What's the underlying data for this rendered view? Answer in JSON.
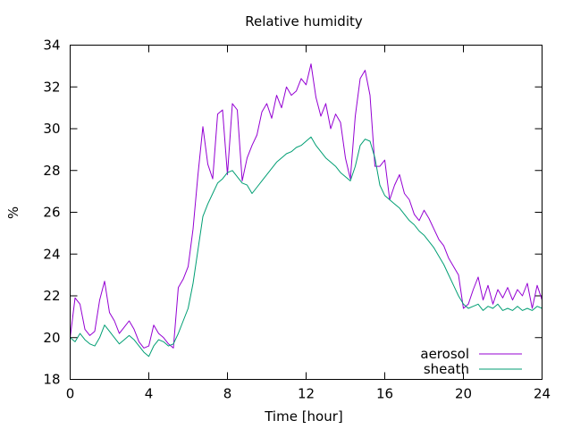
{
  "chart_data": {
    "type": "line",
    "title": "Relative humidity",
    "xlabel": "Time [hour]",
    "ylabel": "%",
    "xlim": [
      0,
      24
    ],
    "ylim": [
      18,
      34
    ],
    "xticks": [
      0,
      4,
      8,
      12,
      16,
      20,
      24
    ],
    "yticks": [
      18,
      20,
      22,
      24,
      26,
      28,
      30,
      32,
      34
    ],
    "grid": false,
    "legend_position": "bottom-right",
    "x": [
      0,
      0.25,
      0.5,
      0.75,
      1,
      1.25,
      1.5,
      1.75,
      2,
      2.25,
      2.5,
      2.75,
      3,
      3.25,
      3.5,
      3.75,
      4,
      4.25,
      4.5,
      4.75,
      5,
      5.25,
      5.5,
      5.75,
      6,
      6.25,
      6.5,
      6.75,
      7,
      7.25,
      7.5,
      7.75,
      8,
      8.25,
      8.5,
      8.75,
      9,
      9.25,
      9.5,
      9.75,
      10,
      10.25,
      10.5,
      10.75,
      11,
      11.25,
      11.5,
      11.75,
      12,
      12.25,
      12.5,
      12.75,
      13,
      13.25,
      13.5,
      13.75,
      14,
      14.25,
      14.5,
      14.75,
      15,
      15.25,
      15.5,
      15.75,
      16,
      16.25,
      16.5,
      16.75,
      17,
      17.25,
      17.5,
      17.75,
      18,
      18.25,
      18.5,
      18.75,
      19,
      19.25,
      19.5,
      19.75,
      20,
      20.25,
      20.5,
      20.75,
      21,
      21.25,
      21.5,
      21.75,
      22,
      22.25,
      22.5,
      22.75,
      23,
      23.25,
      23.5,
      23.75,
      24
    ],
    "series": [
      {
        "name": "aerosol",
        "color": "#9400d3",
        "values": [
          20.0,
          21.9,
          21.6,
          20.4,
          20.1,
          20.3,
          21.8,
          22.7,
          21.2,
          20.8,
          20.2,
          20.5,
          20.8,
          20.4,
          19.8,
          19.5,
          19.6,
          20.6,
          20.2,
          20.0,
          19.7,
          19.5,
          22.4,
          22.8,
          23.4,
          25.2,
          27.8,
          30.1,
          28.3,
          27.6,
          30.7,
          30.9,
          27.8,
          31.2,
          30.9,
          27.5,
          28.6,
          29.2,
          29.7,
          30.8,
          31.2,
          30.5,
          31.6,
          31.0,
          32.0,
          31.6,
          31.8,
          32.4,
          32.1,
          33.1,
          31.5,
          30.6,
          31.2,
          30.0,
          30.7,
          30.3,
          28.6,
          27.6,
          30.6,
          32.4,
          32.8,
          31.6,
          28.2,
          28.2,
          28.5,
          26.6,
          27.3,
          27.8,
          26.9,
          26.6,
          25.9,
          25.6,
          26.1,
          25.7,
          25.2,
          24.7,
          24.4,
          23.8,
          23.4,
          23.0,
          21.4,
          21.6,
          22.3,
          22.9,
          21.8,
          22.5,
          21.6,
          22.3,
          21.9,
          22.4,
          21.8,
          22.3,
          22.0,
          22.6,
          21.4,
          22.5,
          21.8
        ]
      },
      {
        "name": "sheath",
        "color": "#009e73",
        "values": [
          20.0,
          19.8,
          20.2,
          19.9,
          19.7,
          19.6,
          20.0,
          20.6,
          20.3,
          20.0,
          19.7,
          19.9,
          20.1,
          19.9,
          19.6,
          19.3,
          19.1,
          19.6,
          19.9,
          19.8,
          19.6,
          19.7,
          20.2,
          20.8,
          21.4,
          22.6,
          24.2,
          25.8,
          26.4,
          26.9,
          27.4,
          27.6,
          27.9,
          28.0,
          27.7,
          27.4,
          27.3,
          26.9,
          27.2,
          27.5,
          27.8,
          28.1,
          28.4,
          28.6,
          28.8,
          28.9,
          29.1,
          29.2,
          29.4,
          29.6,
          29.2,
          28.9,
          28.6,
          28.4,
          28.2,
          27.9,
          27.7,
          27.5,
          28.2,
          29.2,
          29.5,
          29.4,
          28.6,
          27.3,
          26.8,
          26.6,
          26.4,
          26.2,
          25.9,
          25.6,
          25.4,
          25.1,
          24.9,
          24.6,
          24.3,
          23.9,
          23.5,
          23.0,
          22.5,
          22.0,
          21.6,
          21.4,
          21.5,
          21.6,
          21.3,
          21.5,
          21.4,
          21.6,
          21.3,
          21.4,
          21.3,
          21.5,
          21.3,
          21.4,
          21.3,
          21.5,
          21.4
        ]
      }
    ]
  }
}
